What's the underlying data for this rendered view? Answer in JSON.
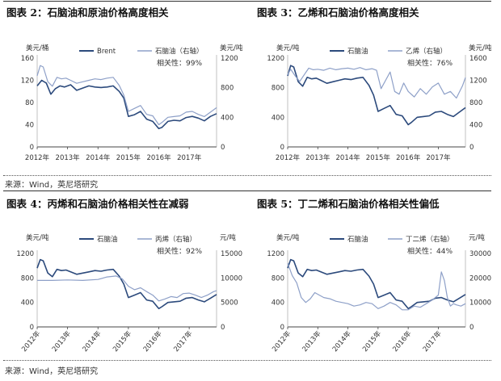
{
  "source_top": "来源：Wind，英尼塔研究",
  "source_bottom": "来源：Wind，英尼塔研究",
  "chart_data": [
    {
      "type": "line",
      "title": "图表 2：石脑油和原油价格高度相关",
      "left_unit": "美元/桶",
      "right_unit": "美元/吨",
      "left_ticks": [
        "160",
        "120",
        "80",
        "40",
        "0"
      ],
      "right_ticks": [
        "1200",
        "800",
        "400",
        "0"
      ],
      "ylim_left": [
        0,
        160
      ],
      "ylim_right": [
        0,
        1200
      ],
      "x_tick_labels": [
        "2012年",
        "2013年",
        "2014年",
        "2015年",
        "2016年",
        "2017年"
      ],
      "x_range": [
        2012.0,
        2017.9
      ],
      "x_ticks": [
        2012,
        2013,
        2014,
        2015,
        2016,
        2017
      ],
      "x_label_rotate": 0,
      "note": "相关性：99%",
      "legend": [
        "Brent",
        "石脑油（右轴）"
      ],
      "series": [
        {
          "name": "Brent",
          "axis": "left",
          "color": "#2c4a7c",
          "width": 1.6,
          "x": [
            2012.0,
            2012.15,
            2012.3,
            2012.45,
            2012.6,
            2012.75,
            2012.9,
            2013.1,
            2013.3,
            2013.5,
            2013.7,
            2013.9,
            2014.1,
            2014.3,
            2014.5,
            2014.7,
            2014.85,
            2015.0,
            2015.2,
            2015.4,
            2015.6,
            2015.8,
            2016.0,
            2016.1,
            2016.3,
            2016.5,
            2016.7,
            2016.9,
            2017.1,
            2017.3,
            2017.5,
            2017.7,
            2017.9
          ],
          "y": [
            110,
            120,
            115,
            95,
            105,
            110,
            108,
            112,
            102,
            106,
            110,
            108,
            107,
            108,
            110,
            100,
            88,
            55,
            58,
            64,
            50,
            46,
            33,
            35,
            46,
            48,
            47,
            53,
            55,
            52,
            47,
            55,
            60
          ]
        },
        {
          "name": "石脑油",
          "axis": "right",
          "color": "#8ea0c8",
          "width": 1.2,
          "x": [
            2012.0,
            2012.1,
            2012.2,
            2012.35,
            2012.5,
            2012.65,
            2012.8,
            2012.95,
            2013.1,
            2013.3,
            2013.5,
            2013.7,
            2013.9,
            2014.1,
            2014.3,
            2014.5,
            2014.7,
            2014.85,
            2015.0,
            2015.2,
            2015.4,
            2015.6,
            2015.8,
            2016.0,
            2016.1,
            2016.3,
            2016.5,
            2016.7,
            2016.9,
            2017.1,
            2017.3,
            2017.5,
            2017.7,
            2017.9
          ],
          "y": [
            960,
            1100,
            1080,
            880,
            820,
            940,
            920,
            930,
            900,
            860,
            880,
            900,
            920,
            910,
            930,
            940,
            830,
            700,
            480,
            520,
            560,
            440,
            420,
            300,
            330,
            400,
            410,
            420,
            470,
            480,
            440,
            410,
            470,
            530
          ]
        }
      ]
    },
    {
      "type": "line",
      "title": "图表 3：乙烯和石脑油价格高度相关",
      "left_unit": "美元/吨",
      "right_unit": "美元/吨",
      "left_ticks": [
        "1200",
        "800",
        "400",
        "0"
      ],
      "right_ticks": [
        "1600",
        "1200",
        "800",
        "400",
        "0"
      ],
      "ylim_left": [
        0,
        1200
      ],
      "ylim_right": [
        0,
        1600
      ],
      "x_tick_labels": [
        "2012年",
        "2013年",
        "2014年",
        "2015年",
        "2016年",
        "2017年"
      ],
      "x_range": [
        2012.0,
        2017.9
      ],
      "x_ticks": [
        2012,
        2013,
        2014,
        2015,
        2016,
        2017
      ],
      "x_label_rotate": 0,
      "note": "相关性：76%",
      "legend": [
        "石脑油",
        "乙烯（右轴）"
      ],
      "series": [
        {
          "name": "石脑油",
          "axis": "left",
          "color": "#2c4a7c",
          "width": 1.6,
          "x": [
            2012.0,
            2012.1,
            2012.2,
            2012.35,
            2012.5,
            2012.65,
            2012.8,
            2012.95,
            2013.1,
            2013.3,
            2013.5,
            2013.7,
            2013.9,
            2014.1,
            2014.3,
            2014.5,
            2014.7,
            2014.85,
            2015.0,
            2015.2,
            2015.4,
            2015.6,
            2015.8,
            2016.0,
            2016.1,
            2016.3,
            2016.5,
            2016.7,
            2016.9,
            2017.1,
            2017.3,
            2017.5,
            2017.7,
            2017.9
          ],
          "y": [
            960,
            1100,
            1080,
            880,
            820,
            940,
            920,
            930,
            900,
            860,
            880,
            900,
            920,
            910,
            930,
            940,
            830,
            700,
            480,
            520,
            560,
            440,
            420,
            300,
            330,
            400,
            410,
            420,
            470,
            480,
            440,
            410,
            470,
            530
          ]
        },
        {
          "name": "乙烯",
          "axis": "right",
          "color": "#8ea0c8",
          "width": 1.2,
          "x": [
            2012.0,
            2012.1,
            2012.25,
            2012.4,
            2012.55,
            2012.7,
            2012.85,
            2013.0,
            2013.2,
            2013.4,
            2013.6,
            2013.8,
            2014.0,
            2014.2,
            2014.4,
            2014.6,
            2014.8,
            2014.95,
            2015.1,
            2015.25,
            2015.4,
            2015.55,
            2015.7,
            2015.85,
            2016.0,
            2016.2,
            2016.4,
            2016.6,
            2016.8,
            2017.0,
            2017.2,
            2017.4,
            2017.6,
            2017.8,
            2017.9
          ],
          "y": [
            1300,
            1400,
            1280,
            1180,
            1300,
            1420,
            1390,
            1400,
            1380,
            1420,
            1390,
            1410,
            1420,
            1400,
            1430,
            1390,
            1410,
            1380,
            1050,
            1200,
            1350,
            1000,
            950,
            1150,
            1000,
            900,
            1050,
            950,
            1080,
            1150,
            950,
            1000,
            880,
            1100,
            1250
          ]
        }
      ]
    },
    {
      "type": "line",
      "title": "图表 4：丙烯和石脑油价格相关性在减弱",
      "left_unit": "美元/吨",
      "right_unit": "元/吨",
      "left_ticks": [
        "1200",
        "800",
        "400",
        "0"
      ],
      "right_ticks": [
        "15000",
        "10000",
        "5000",
        "0"
      ],
      "ylim_left": [
        0,
        1200
      ],
      "ylim_right": [
        0,
        15000
      ],
      "x_tick_labels": [
        "2012年",
        "2013年",
        "2014年",
        "2015年",
        "2016年",
        "2017年"
      ],
      "x_range": [
        2012.0,
        2017.9
      ],
      "x_ticks": [
        2012,
        2013,
        2014,
        2015,
        2016,
        2017
      ],
      "x_label_rotate": -50,
      "note": "相关性：92%",
      "legend": [
        "石脑油",
        "丙烯（右轴）"
      ],
      "series": [
        {
          "name": "石脑油",
          "axis": "left",
          "color": "#2c4a7c",
          "width": 1.6,
          "x": [
            2012.0,
            2012.1,
            2012.2,
            2012.35,
            2012.5,
            2012.65,
            2012.8,
            2012.95,
            2013.1,
            2013.3,
            2013.5,
            2013.7,
            2013.9,
            2014.1,
            2014.3,
            2014.5,
            2014.7,
            2014.85,
            2015.0,
            2015.2,
            2015.4,
            2015.6,
            2015.8,
            2016.0,
            2016.1,
            2016.3,
            2016.5,
            2016.7,
            2016.9,
            2017.1,
            2017.3,
            2017.5,
            2017.7,
            2017.9
          ],
          "y": [
            960,
            1100,
            1080,
            880,
            820,
            940,
            920,
            930,
            900,
            860,
            880,
            900,
            920,
            910,
            930,
            940,
            830,
            700,
            480,
            520,
            560,
            440,
            420,
            300,
            330,
            400,
            410,
            420,
            470,
            480,
            440,
            410,
            470,
            530
          ]
        },
        {
          "name": "丙烯",
          "axis": "right",
          "color": "#8ea0c8",
          "width": 1.2,
          "x": [
            2012.0,
            2012.5,
            2013.0,
            2013.5,
            2014.0,
            2014.3,
            2014.6,
            2014.8,
            2015.0,
            2015.2,
            2015.4,
            2015.6,
            2015.8,
            2016.0,
            2016.2,
            2016.4,
            2016.6,
            2016.8,
            2017.0,
            2017.2,
            2017.4,
            2017.6,
            2017.8,
            2017.9
          ],
          "y": [
            9500,
            9500,
            9600,
            9500,
            9700,
            10200,
            10400,
            9800,
            8300,
            7600,
            8000,
            7200,
            6500,
            5300,
            5700,
            6200,
            6000,
            6800,
            6900,
            6500,
            6000,
            6500,
            7200,
            7400
          ]
        }
      ]
    },
    {
      "type": "line",
      "title": "图表 5：丁二烯和石脑油价格相关性偏低",
      "left_unit": "美元/吨",
      "right_unit": "元/吨",
      "left_ticks": [
        "1200",
        "800",
        "400",
        "0"
      ],
      "right_ticks": [
        "30000",
        "20000",
        "10000",
        "0"
      ],
      "ylim_left": [
        0,
        1200
      ],
      "ylim_right": [
        0,
        30000
      ],
      "x_tick_labels": [
        "2012年",
        "2013年",
        "2014年",
        "2015年",
        "2016年",
        "2017年"
      ],
      "x_range": [
        2012.0,
        2017.9
      ],
      "x_ticks": [
        2012,
        2013,
        2014,
        2015,
        2016,
        2017
      ],
      "x_label_rotate": -50,
      "note": "相关性：44%",
      "legend": [
        "石脑油",
        "丁二烯（右轴）"
      ],
      "series": [
        {
          "name": "石脑油",
          "axis": "left",
          "color": "#2c4a7c",
          "width": 1.6,
          "x": [
            2012.0,
            2012.1,
            2012.2,
            2012.35,
            2012.5,
            2012.65,
            2012.8,
            2012.95,
            2013.1,
            2013.3,
            2013.5,
            2013.7,
            2013.9,
            2014.1,
            2014.3,
            2014.5,
            2014.7,
            2014.85,
            2015.0,
            2015.2,
            2015.4,
            2015.6,
            2015.8,
            2016.0,
            2016.1,
            2016.3,
            2016.5,
            2016.7,
            2016.9,
            2017.1,
            2017.3,
            2017.5,
            2017.7,
            2017.9
          ],
          "y": [
            960,
            1100,
            1080,
            880,
            820,
            940,
            920,
            930,
            900,
            860,
            880,
            900,
            920,
            910,
            930,
            940,
            830,
            700,
            480,
            520,
            560,
            440,
            420,
            300,
            330,
            400,
            410,
            420,
            470,
            480,
            440,
            410,
            470,
            530
          ]
        },
        {
          "name": "丁二烯",
          "axis": "right",
          "color": "#8ea0c8",
          "width": 1.2,
          "x": [
            2012.0,
            2012.15,
            2012.3,
            2012.45,
            2012.6,
            2012.75,
            2012.9,
            2013.05,
            2013.2,
            2013.4,
            2013.6,
            2013.8,
            2014.0,
            2014.2,
            2014.4,
            2014.6,
            2014.8,
            2015.0,
            2015.2,
            2015.4,
            2015.6,
            2015.8,
            2016.0,
            2016.2,
            2016.4,
            2016.6,
            2016.8,
            2017.0,
            2017.1,
            2017.2,
            2017.3,
            2017.4,
            2017.5,
            2017.6,
            2017.75,
            2017.9
          ],
          "y": [
            26000,
            21000,
            18000,
            12000,
            10000,
            11500,
            14000,
            13000,
            12000,
            11500,
            10500,
            10000,
            9500,
            8500,
            9000,
            10000,
            9500,
            7500,
            8500,
            10000,
            9000,
            7000,
            7000,
            8500,
            8000,
            9500,
            11000,
            13000,
            22500,
            19000,
            12000,
            8500,
            9500,
            9000,
            8500,
            9500
          ]
        }
      ]
    }
  ]
}
